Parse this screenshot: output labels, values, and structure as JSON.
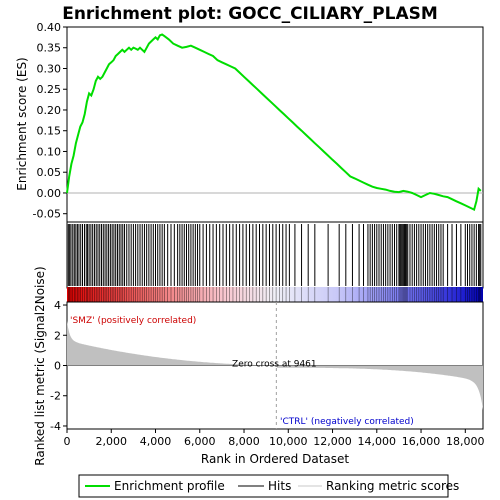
{
  "chart_data": {
    "type": "line",
    "title": "Enrichment plot: GOCC_CILIARY_PLASM",
    "xlabel": "Rank in Ordered Dataset",
    "ylabel_top": "Enrichment score (ES)",
    "ylabel_bottom": "Ranked list metric (Signal2Noise)",
    "x_range": [
      0,
      18800
    ],
    "es_ylim": [
      -0.07,
      0.4
    ],
    "es_yticks": [
      -0.05,
      0.0,
      0.05,
      0.1,
      0.15,
      0.2,
      0.25,
      0.3,
      0.35,
      0.4
    ],
    "es_ytick_labels": [
      "-0.05",
      "0.00",
      "0.05",
      "0.10",
      "0.15",
      "0.20",
      "0.25",
      "0.30",
      "0.35",
      "0.40"
    ],
    "metric_ylim": [
      -4.2,
      4.2
    ],
    "metric_yticks": [
      -4,
      -2,
      0,
      2,
      4
    ],
    "metric_ytick_labels": [
      "-4",
      "-2",
      "0",
      "2",
      "4"
    ],
    "xticks": [
      0,
      2000,
      4000,
      6000,
      8000,
      10000,
      12000,
      14000,
      16000,
      18000
    ],
    "xtick_labels": [
      "0",
      "2,000",
      "4,000",
      "6,000",
      "8,000",
      "10,000",
      "12,000",
      "14,000",
      "16,000",
      "18,000"
    ],
    "zero_cross": 9461,
    "zero_cross_label": "Zero cross at 9461",
    "pos_label": "'SMZ' (positively correlated)",
    "neg_label": "'CTRL' (negatively correlated)",
    "legend": [
      {
        "label": "Enrichment profile",
        "color": "#00dd00"
      },
      {
        "label": "Hits",
        "color": "#000000"
      },
      {
        "label": "Ranking metric scores",
        "color": "#c8c8c8"
      }
    ],
    "es_curve": {
      "x": [
        0,
        100,
        200,
        300,
        400,
        500,
        600,
        700,
        800,
        900,
        1000,
        1100,
        1200,
        1300,
        1400,
        1500,
        1600,
        1700,
        1800,
        1900,
        2000,
        2100,
        2200,
        2300,
        2400,
        2500,
        2600,
        2700,
        2800,
        2900,
        3000,
        3100,
        3200,
        3300,
        3400,
        3500,
        3600,
        3700,
        3800,
        3900,
        4000,
        4100,
        4200,
        4300,
        4400,
        4600,
        4800,
        5000,
        5200,
        5400,
        5600,
        5800,
        6000,
        6200,
        6400,
        6600,
        6800,
        7000,
        7200,
        7400,
        7600,
        7800,
        8000,
        8200,
        8400,
        8600,
        8800,
        9000,
        9200,
        9400,
        9600,
        9800,
        10000,
        10200,
        10400,
        10600,
        10800,
        11000,
        11200,
        11400,
        11600,
        11800,
        12000,
        12200,
        12400,
        12600,
        12800,
        13000,
        13200,
        13400,
        13600,
        13800,
        14000,
        14200,
        14400,
        14600,
        14800,
        15000,
        15200,
        15400,
        15600,
        15800,
        16000,
        16200,
        16400,
        16600,
        16800,
        17000,
        17200,
        17400,
        17600,
        17800,
        18000,
        18200,
        18400,
        18500,
        18600,
        18700
      ],
      "y": [
        0.0,
        0.04,
        0.07,
        0.09,
        0.12,
        0.14,
        0.16,
        0.17,
        0.19,
        0.22,
        0.24,
        0.235,
        0.25,
        0.27,
        0.28,
        0.275,
        0.28,
        0.29,
        0.3,
        0.31,
        0.315,
        0.32,
        0.33,
        0.335,
        0.34,
        0.345,
        0.34,
        0.345,
        0.35,
        0.345,
        0.35,
        0.348,
        0.345,
        0.35,
        0.345,
        0.34,
        0.35,
        0.36,
        0.365,
        0.37,
        0.375,
        0.37,
        0.38,
        0.382,
        0.378,
        0.37,
        0.36,
        0.355,
        0.35,
        0.352,
        0.355,
        0.35,
        0.345,
        0.34,
        0.335,
        0.33,
        0.32,
        0.315,
        0.31,
        0.305,
        0.3,
        0.29,
        0.28,
        0.27,
        0.26,
        0.25,
        0.24,
        0.23,
        0.22,
        0.21,
        0.2,
        0.19,
        0.18,
        0.17,
        0.16,
        0.15,
        0.14,
        0.13,
        0.12,
        0.11,
        0.1,
        0.09,
        0.08,
        0.07,
        0.06,
        0.05,
        0.04,
        0.035,
        0.03,
        0.025,
        0.02,
        0.015,
        0.012,
        0.01,
        0.008,
        0.005,
        0.003,
        0.002,
        0.005,
        0.003,
        0.0,
        -0.005,
        -0.01,
        -0.005,
        0.0,
        -0.002,
        -0.005,
        -0.008,
        -0.01,
        -0.015,
        -0.02,
        -0.025,
        -0.03,
        -0.035,
        -0.04,
        -0.02,
        0.01,
        0.005
      ]
    },
    "hit_positions": [
      60,
      120,
      180,
      260,
      330,
      400,
      470,
      540,
      620,
      700,
      790,
      870,
      930,
      1000,
      1080,
      1160,
      1240,
      1320,
      1400,
      1480,
      1560,
      1640,
      1720,
      1800,
      1880,
      1960,
      2040,
      2120,
      2200,
      2280,
      2360,
      2440,
      2520,
      2600,
      2700,
      2800,
      2900,
      3000,
      3100,
      3200,
      3300,
      3400,
      3500,
      3600,
      3700,
      3800,
      3900,
      4000,
      4100,
      4200,
      4300,
      4400,
      4550,
      4700,
      4850,
      5000,
      5100,
      5200,
      5300,
      5400,
      5500,
      5600,
      5700,
      5800,
      5900,
      6000,
      6150,
      6300,
      6450,
      6600,
      6750,
      6900,
      7050,
      7200,
      7350,
      7500,
      7650,
      7800,
      7950,
      8100,
      8250,
      8400,
      8550,
      8700,
      8850,
      9000,
      9150,
      9300,
      9450,
      9600,
      9750,
      9900,
      10050,
      10300,
      10600,
      10900,
      11200,
      11800,
      12300,
      12600,
      12900,
      13200,
      13400,
      13600,
      13700,
      13800,
      13900,
      14000,
      14100,
      14200,
      14300,
      14400,
      14500,
      14600,
      14700,
      14800,
      14900,
      15000,
      15050,
      15100,
      15150,
      15200,
      15250,
      15300,
      15350,
      15400,
      15500,
      15600,
      15700,
      15800,
      15900,
      16000,
      16100,
      16200,
      16300,
      16400,
      16500,
      16600,
      16700,
      16800,
      16900,
      17000,
      17200,
      17400,
      17600,
      17800,
      18000,
      18100,
      18200,
      18300,
      18400,
      18500,
      18600,
      18650,
      18700
    ]
  }
}
